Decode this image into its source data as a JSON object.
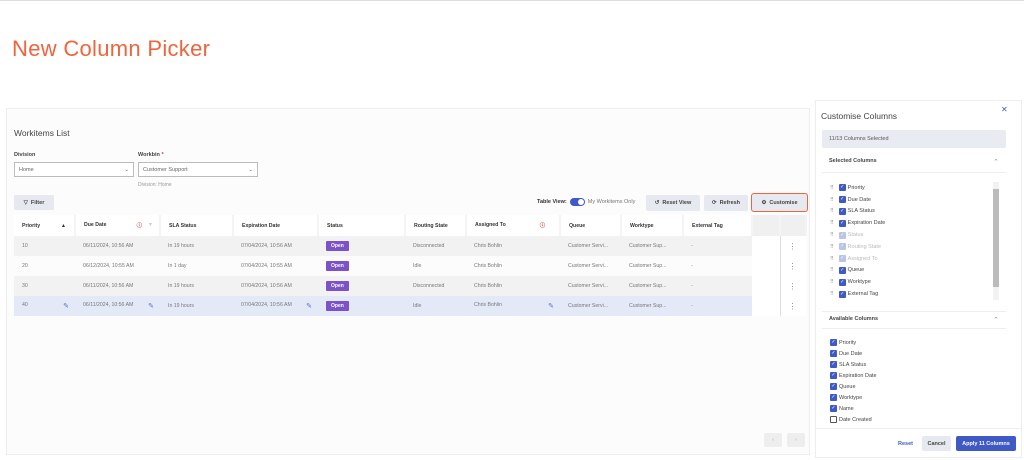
{
  "page_title": "New Column Picker",
  "list": {
    "title": "Workitems List",
    "division_label": "Division",
    "division_value": "Home",
    "workbin_label": "Workbin",
    "workbin_required": "*",
    "workbin_value": "Customer Support",
    "workbin_hint": "Division: Home",
    "filter_label": "Filter",
    "table_view_label": "Table View:",
    "toggle_label": "My Workitems Only",
    "toggle_on": true,
    "reset_view": "Reset View",
    "refresh": "Refresh",
    "customise": "Customise",
    "columns": [
      "Priority",
      "Due Date",
      "SLA Status",
      "Expiration Date",
      "Status",
      "Routing State",
      "Assigned To",
      "Queue",
      "Worktype",
      "External Tag"
    ],
    "rows": [
      [
        "10",
        "06/11/2024, 10:56 AM",
        "In 19 hours",
        "07/04/2024, 10:56 AM",
        "Open",
        "Disconnected",
        "Chris Bohlin",
        "Customer Servi...",
        "Customer Sup...",
        "-"
      ],
      [
        "20",
        "06/12/2024, 10:55 AM",
        "In 1 day",
        "07/04/2024, 10:55 AM",
        "Open",
        "Idle",
        "Chris Bohlin",
        "Customer Servi...",
        "Customer Sup...",
        "-"
      ],
      [
        "30",
        "06/11/2024, 10:56 AM",
        "In 19 hours",
        "07/04/2024, 10:56 AM",
        "Open",
        "Disconnected",
        "Chris Bohlin",
        "Customer Servi...",
        "Customer Sup...",
        "-"
      ],
      [
        "40",
        "06/11/2024, 10:56 AM",
        "In 19 hours",
        "07/04/2024, 10:56 AM",
        "Open",
        "Idle",
        "Chris Bohlin",
        "Customer Servi...",
        "Customer Sup...",
        "-"
      ]
    ]
  },
  "panel": {
    "title": "Customise Columns",
    "count": "11/13 Columns Selected",
    "selected_header": "Selected Columns",
    "selected": [
      {
        "label": "Priority",
        "state": "checked"
      },
      {
        "label": "Due Date",
        "state": "checked"
      },
      {
        "label": "SLA Status",
        "state": "checked"
      },
      {
        "label": "Expiration Date",
        "state": "checked"
      },
      {
        "label": "Status",
        "state": "locked"
      },
      {
        "label": "Routing State",
        "state": "locked"
      },
      {
        "label": "Assigned To",
        "state": "locked"
      },
      {
        "label": "Queue",
        "state": "checked"
      },
      {
        "label": "Worktype",
        "state": "checked"
      },
      {
        "label": "External Tag",
        "state": "checked"
      }
    ],
    "available_header": "Available Columns",
    "available": [
      {
        "label": "Priority",
        "checked": true
      },
      {
        "label": "Due Date",
        "checked": true
      },
      {
        "label": "SLA Status",
        "checked": true
      },
      {
        "label": "Expiration Date",
        "checked": true
      },
      {
        "label": "Queue",
        "checked": true
      },
      {
        "label": "Worktype",
        "checked": true
      },
      {
        "label": "Name",
        "checked": true
      },
      {
        "label": "Date Created",
        "checked": false
      }
    ],
    "reset": "Reset",
    "cancel": "Cancel",
    "apply": "Apply 11 Columns"
  },
  "colors": {
    "accent": "#f0643c",
    "primary": "#3f5ac4",
    "status_open": "#7d52c8"
  }
}
